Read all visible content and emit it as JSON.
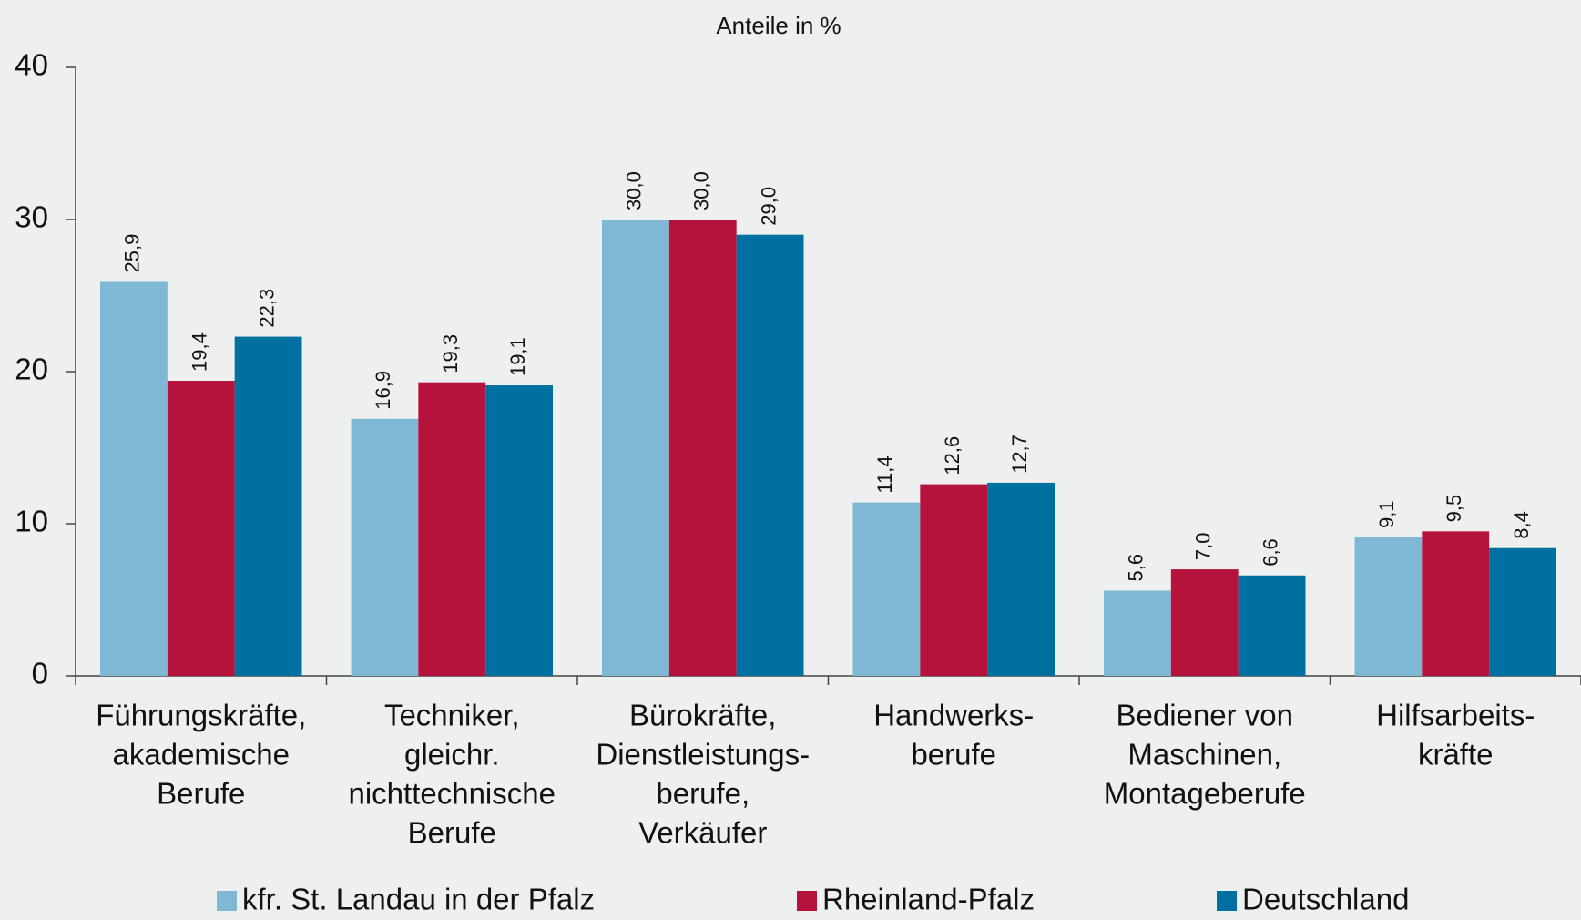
{
  "chart_data": {
    "type": "bar",
    "title": "Anteile in %",
    "categories": [
      [
        "Führungskräfte,",
        "akademische",
        "Berufe"
      ],
      [
        "Techniker,",
        "gleichr.",
        "nichttechnische",
        "Berufe"
      ],
      [
        "Bürokräfte,",
        "Dienstleistungs-",
        "berufe,",
        "Verkäufer"
      ],
      [
        "Handwerks-",
        "berufe"
      ],
      [
        "Bediener von",
        "Maschinen,",
        "Montageberufe"
      ],
      [
        "Hilfsarbeits-",
        "kräfte"
      ]
    ],
    "series": [
      {
        "name": "kfr. St. Landau in der Pfalz",
        "color": "#7fb8d4",
        "values": [
          25.9,
          16.9,
          30.0,
          11.4,
          5.6,
          9.1
        ],
        "value_labels": [
          "25,9",
          "16,9",
          "30,0",
          "11,4",
          "5,6",
          "9,1"
        ]
      },
      {
        "name": "Rheinland-Pfalz",
        "color": "#b5133c",
        "values": [
          19.4,
          19.3,
          30.0,
          12.6,
          7.0,
          9.5
        ],
        "value_labels": [
          "19,4",
          "19,3",
          "30,0",
          "12,6",
          "7,0",
          "9,5"
        ]
      },
      {
        "name": "Deutschland",
        "color": "#0070a0",
        "values": [
          22.3,
          19.1,
          29.0,
          12.7,
          6.6,
          8.4
        ],
        "value_labels": [
          "22,3",
          "19,1",
          "29,0",
          "12,7",
          "6,6",
          "8,4"
        ]
      }
    ],
    "ylim": [
      0,
      40
    ],
    "yticks": [
      0,
      10,
      20,
      30,
      40
    ],
    "legend": "bottom"
  }
}
